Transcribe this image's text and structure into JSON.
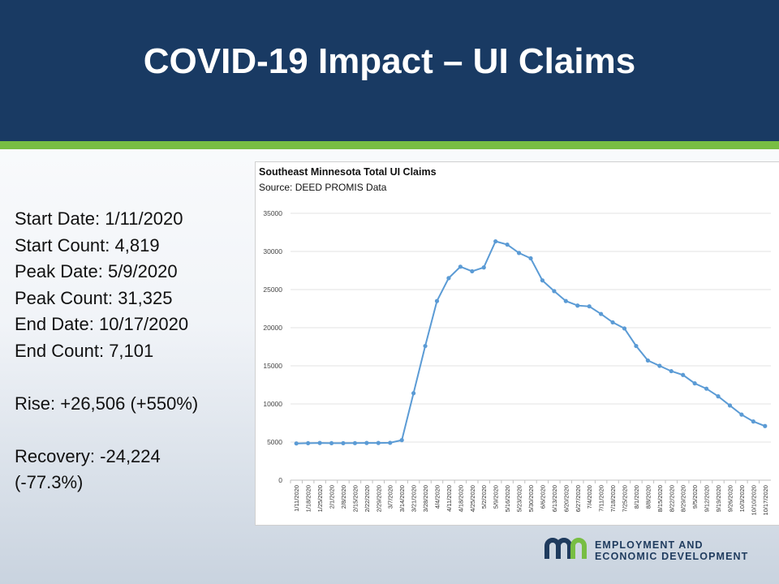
{
  "slide": {
    "title": "COVID-19 Impact – UI Claims"
  },
  "stats": {
    "start_date": "Start Date: 1/11/2020",
    "start_count": "Start Count: 4,819",
    "peak_date": "Peak Date: 5/9/2020",
    "peak_count": "Peak Count: 31,325",
    "end_date": "End Date: 10/17/2020",
    "end_count": "End Count: 7,101",
    "rise": "Rise: +26,506 (+550%)",
    "recovery_line1": "Recovery: -24,224",
    "recovery_line2": "(-77.3%)"
  },
  "logo": {
    "mark": "mn",
    "line1": "EMPLOYMENT AND",
    "line2": "ECONOMIC DEVELOPMENT"
  },
  "colors": {
    "header": "#193a63",
    "accent_stripe": "#78be43",
    "series_line": "#5b9bd5"
  },
  "chart_data": {
    "type": "line",
    "title": "Southeast Minnesota Total UI Claims",
    "subtitle": "Source: DEED PROMIS Data",
    "xlabel": "",
    "ylabel": "",
    "ylim": [
      0,
      35000
    ],
    "yticks": [
      0,
      5000,
      10000,
      15000,
      20000,
      25000,
      30000,
      35000
    ],
    "grid": true,
    "legend": "none",
    "categories": [
      "1/11/2020",
      "1/18/2020",
      "1/25/2020",
      "2/1/2020",
      "2/8/2020",
      "2/15/2020",
      "2/22/2020",
      "2/29/2020",
      "3/7/2020",
      "3/14/2020",
      "3/21/2020",
      "3/28/2020",
      "4/4/2020",
      "4/11/2020",
      "4/18/2020",
      "4/25/2020",
      "5/2/2020",
      "5/9/2020",
      "5/16/2020",
      "5/23/2020",
      "5/30/2020",
      "6/6/2020",
      "6/13/2020",
      "6/20/2020",
      "6/27/2020",
      "7/4/2020",
      "7/11/2020",
      "7/18/2020",
      "7/25/2020",
      "8/1/2020",
      "8/8/2020",
      "8/15/2020",
      "8/22/2020",
      "8/29/2020",
      "9/5/2020",
      "9/12/2020",
      "9/19/2020",
      "9/26/2020",
      "10/3/2020",
      "10/10/2020",
      "10/17/2020"
    ],
    "series": [
      {
        "values": [
          4819,
          4850,
          4880,
          4850,
          4850,
          4860,
          4880,
          4880,
          4900,
          5250,
          11400,
          17600,
          23500,
          26500,
          28000,
          27400,
          27900,
          31325,
          30900,
          29800,
          29100,
          26200,
          24800,
          23500,
          22900,
          22800,
          21800,
          20700,
          19900,
          17600,
          15700,
          15000,
          14300,
          13800,
          12700,
          12000,
          11000,
          9800,
          8600,
          7700,
          7101
        ]
      }
    ]
  }
}
